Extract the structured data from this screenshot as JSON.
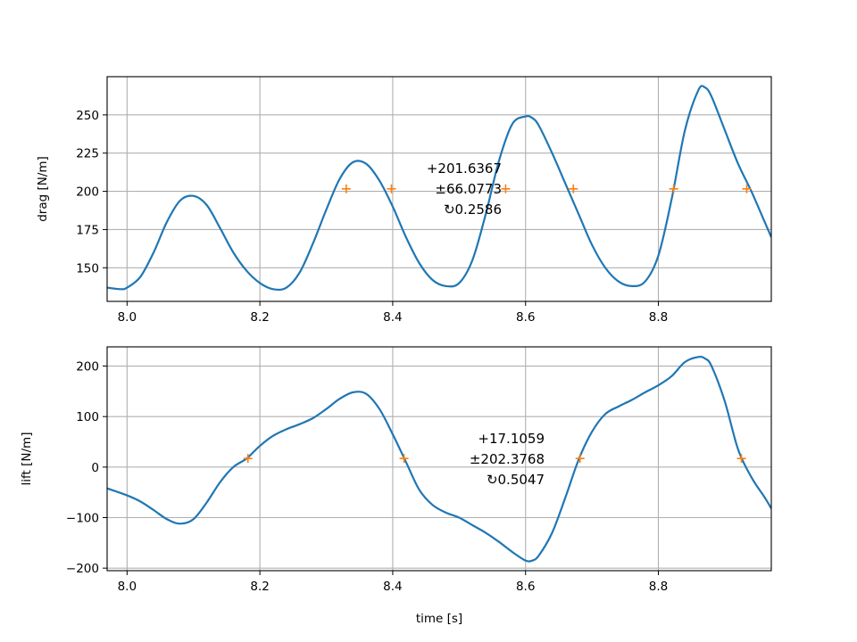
{
  "chart_data": [
    {
      "type": "line",
      "id": "drag",
      "xlabel": "",
      "ylabel": "drag [N/m]",
      "xlim": [
        7.97,
        8.97
      ],
      "ylim": [
        128,
        275
      ],
      "xticks": [
        8.0,
        8.2,
        8.4,
        8.6,
        8.8
      ],
      "xtick_labels": [
        "8.0",
        "8.2",
        "8.4",
        "8.6",
        "8.8"
      ],
      "yticks": [
        150,
        175,
        200,
        225,
        250
      ],
      "ytick_labels": [
        "150",
        "175",
        "200",
        "225",
        "250"
      ],
      "grid": true,
      "line_color": "#1f77b4",
      "marker_color": "#ff7f0e",
      "series": [
        {
          "x": [
            7.97,
            7.99,
            8.0,
            8.02,
            8.04,
            8.06,
            8.08,
            8.1,
            8.12,
            8.14,
            8.16,
            8.18,
            8.2,
            8.22,
            8.24,
            8.26,
            8.28,
            8.3,
            8.32,
            8.34,
            8.36,
            8.38,
            8.4,
            8.42,
            8.44,
            8.46,
            8.48,
            8.5,
            8.52,
            8.54,
            8.56,
            8.58,
            8.6,
            8.61,
            8.62,
            8.64,
            8.66,
            8.68,
            8.7,
            8.72,
            8.74,
            8.76,
            8.78,
            8.8,
            8.82,
            8.84,
            8.86,
            8.87,
            8.88,
            8.9,
            8.92,
            8.94,
            8.96,
            8.97
          ],
          "y": [
            137,
            136,
            137,
            144,
            160,
            180,
            194,
            197,
            191,
            176,
            160,
            148,
            140,
            136,
            137,
            147,
            166,
            188,
            208,
            219,
            218,
            207,
            190,
            170,
            153,
            142,
            138,
            140,
            155,
            185,
            220,
            244,
            249,
            248,
            243,
            225,
            205,
            185,
            165,
            150,
            141,
            138,
            141,
            158,
            195,
            240,
            266,
            268,
            262,
            240,
            218,
            200,
            180,
            170
          ]
        }
      ],
      "markers": {
        "x": [
          8.33,
          8.398,
          8.57,
          8.672,
          8.823,
          8.933
        ],
        "y": [
          201.6367,
          201.6367,
          201.6367,
          201.6367,
          201.6367,
          201.6367
        ]
      },
      "annotation": [
        "+201.6367",
        "±66.0773",
        "↻0.2586"
      ]
    },
    {
      "type": "line",
      "id": "lift",
      "xlabel": "time [s]",
      "ylabel": "lift [N/m]",
      "xlim": [
        7.97,
        8.97
      ],
      "ylim": [
        -205,
        238
      ],
      "xticks": [
        8.0,
        8.2,
        8.4,
        8.6,
        8.8
      ],
      "xtick_labels": [
        "8.0",
        "8.2",
        "8.4",
        "8.6",
        "8.8"
      ],
      "yticks": [
        -200,
        -100,
        0,
        100,
        200
      ],
      "ytick_labels": [
        "−200",
        "−100",
        "0",
        "100",
        "200"
      ],
      "grid": true,
      "line_color": "#1f77b4",
      "marker_color": "#ff7f0e",
      "series": [
        {
          "x": [
            7.97,
            8.0,
            8.02,
            8.04,
            8.06,
            8.08,
            8.1,
            8.12,
            8.14,
            8.16,
            8.18,
            8.2,
            8.22,
            8.24,
            8.26,
            8.28,
            8.3,
            8.32,
            8.34,
            8.36,
            8.38,
            8.4,
            8.42,
            8.44,
            8.46,
            8.48,
            8.5,
            8.52,
            8.54,
            8.56,
            8.58,
            8.6,
            8.61,
            8.62,
            8.64,
            8.66,
            8.68,
            8.7,
            8.72,
            8.74,
            8.76,
            8.78,
            8.8,
            8.82,
            8.84,
            8.86,
            8.87,
            8.88,
            8.9,
            8.92,
            8.94,
            8.96,
            8.97
          ],
          "y": [
            -42,
            -56,
            -68,
            -85,
            -103,
            -112,
            -103,
            -70,
            -30,
            0,
            17,
            42,
            62,
            75,
            85,
            97,
            115,
            135,
            148,
            145,
            115,
            65,
            10,
            -45,
            -75,
            -90,
            -100,
            -115,
            -130,
            -148,
            -168,
            -185,
            -185,
            -175,
            -130,
            -60,
            15,
            70,
            105,
            120,
            133,
            148,
            162,
            180,
            208,
            218,
            215,
            200,
            130,
            35,
            -20,
            -60,
            -82
          ]
        }
      ],
      "markers": {
        "x": [
          8.182,
          8.417,
          8.682,
          8.925
        ],
        "y": [
          17.1059,
          17.1059,
          17.1059,
          17.1059
        ]
      },
      "annotation": [
        "+17.1059",
        "±202.3768",
        "↻0.5047"
      ]
    }
  ]
}
